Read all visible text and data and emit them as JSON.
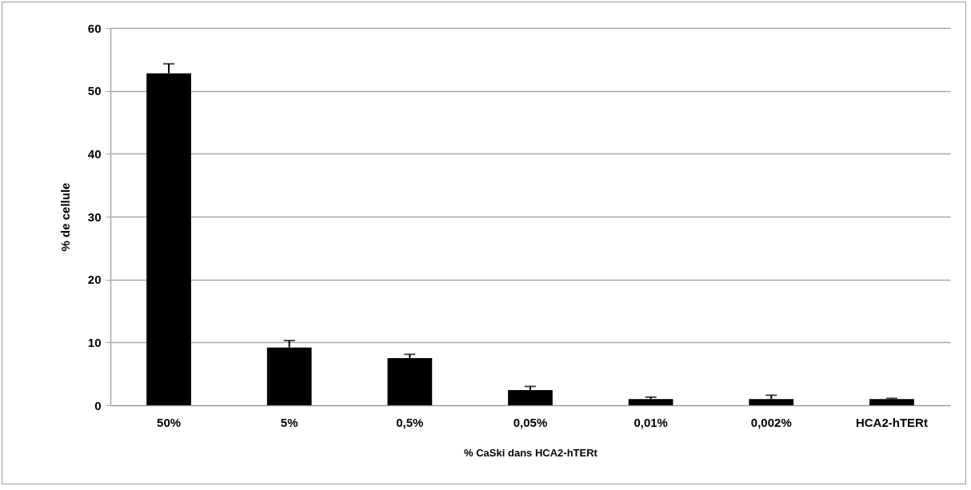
{
  "chart_data": {
    "type": "bar",
    "xlabel": "% CaSki dans HCA2-hTERt",
    "ylabel": "% de cellule",
    "categories": [
      "50%",
      "5%",
      "0,5%",
      "0,05%",
      "0,01%",
      "0,002%",
      "HCA2-hTERt"
    ],
    "values": [
      52.8,
      9.2,
      7.5,
      2.4,
      1.0,
      1.0,
      1.0
    ],
    "errors": [
      [
        52.8,
        54.3
      ],
      [
        9.2,
        10.3
      ],
      [
        7.5,
        8.1
      ],
      [
        2.4,
        3.0
      ],
      [
        1.0,
        1.3
      ],
      [
        1.0,
        1.6
      ],
      [
        1.0,
        1.1
      ]
    ],
    "color": "#000000",
    "ylim": [
      0,
      60
    ],
    "yticks": [
      0,
      10,
      20,
      30,
      40,
      50,
      60
    ],
    "grid": "y"
  }
}
